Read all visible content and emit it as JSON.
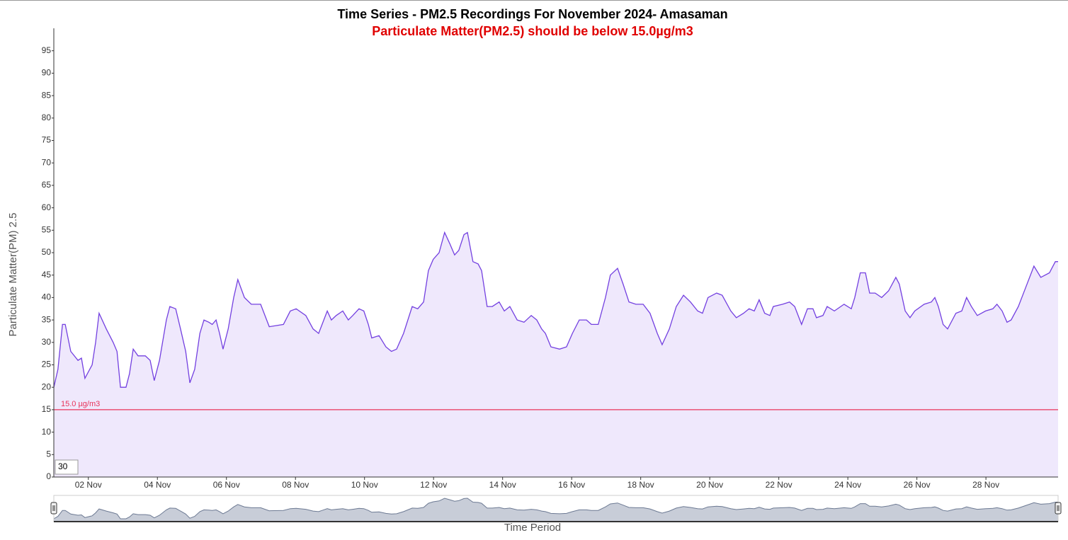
{
  "chart_data": {
    "type": "area",
    "title": "Time Series - PM2.5 Recordings For November 2024- Amasaman",
    "subtitle": "Particulate Matter(PM2.5) should be below 15.0µg/m3",
    "y_label": "Particulate Matter(PM) 2.5",
    "x_label": "Time Period",
    "range_input": "30",
    "color": "#7340e0",
    "fill_color": "#efe8fc",
    "navigator_color": "#6d7a93",
    "navigator_fill": "#c8cdd8",
    "threshold": {
      "value": 15,
      "label": "15.0 µg/m3",
      "color": "#e8335a"
    },
    "xlim": [
      1,
      30.09
    ],
    "ylim": [
      0,
      100
    ],
    "yticks": [
      0,
      5,
      10,
      15,
      20,
      25,
      30,
      35,
      40,
      45,
      50,
      55,
      60,
      65,
      70,
      75,
      80,
      85,
      90,
      95
    ],
    "xticks": [
      {
        "value": 2,
        "label": "02 Nov"
      },
      {
        "value": 4,
        "label": "04 Nov"
      },
      {
        "value": 6,
        "label": "06 Nov"
      },
      {
        "value": 8,
        "label": "08 Nov"
      },
      {
        "value": 10,
        "label": "10 Nov"
      },
      {
        "value": 12,
        "label": "12 Nov"
      },
      {
        "value": 14,
        "label": "14 Nov"
      },
      {
        "value": 16,
        "label": "16 Nov"
      },
      {
        "value": 18,
        "label": "18 Nov"
      },
      {
        "value": 20,
        "label": "20 Nov"
      },
      {
        "value": 22,
        "label": "22 Nov"
      },
      {
        "value": 24,
        "label": "24 Nov"
      },
      {
        "value": 26,
        "label": "26 Nov"
      },
      {
        "value": 28,
        "label": "28 Nov"
      }
    ],
    "x": [
      1.0,
      1.12,
      1.25,
      1.33,
      1.49,
      1.7,
      1.8,
      1.9,
      2.11,
      2.21,
      2.31,
      2.52,
      2.72,
      2.83,
      2.93,
      3.09,
      3.19,
      3.3,
      3.44,
      3.65,
      3.79,
      3.91,
      4.06,
      4.26,
      4.36,
      4.53,
      4.67,
      4.82,
      4.94,
      5.08,
      5.23,
      5.35,
      5.49,
      5.59,
      5.7,
      5.8,
      5.9,
      6.05,
      6.21,
      6.33,
      6.52,
      6.72,
      6.99,
      7.24,
      7.65,
      7.85,
      8.02,
      8.3,
      8.51,
      8.67,
      8.77,
      8.92,
      9.04,
      9.18,
      9.37,
      9.53,
      9.66,
      9.84,
      9.98,
      10.11,
      10.21,
      10.42,
      10.62,
      10.78,
      10.93,
      11.13,
      11.38,
      11.54,
      11.71,
      11.85,
      11.99,
      12.16,
      12.32,
      12.47,
      12.61,
      12.73,
      12.88,
      12.98,
      13.14,
      13.29,
      13.39,
      13.55,
      13.7,
      13.9,
      14.05,
      14.21,
      14.42,
      14.62,
      14.83,
      14.99,
      15.13,
      15.24,
      15.4,
      15.65,
      15.85,
      16.02,
      16.22,
      16.43,
      16.57,
      16.77,
      16.98,
      17.12,
      17.33,
      17.49,
      17.66,
      17.86,
      18.07,
      18.27,
      18.48,
      18.62,
      18.83,
      19.03,
      19.24,
      19.44,
      19.65,
      19.79,
      19.95,
      20.2,
      20.36,
      20.61,
      20.77,
      20.98,
      21.14,
      21.29,
      21.43,
      21.59,
      21.74,
      21.84,
      22.11,
      22.31,
      22.46,
      22.66,
      22.83,
      22.99,
      23.09,
      23.28,
      23.4,
      23.61,
      23.89,
      24.1,
      24.2,
      24.36,
      24.51,
      24.63,
      24.79,
      24.98,
      25.18,
      25.39,
      25.49,
      25.66,
      25.8,
      25.94,
      26.21,
      26.42,
      26.52,
      26.62,
      26.76,
      26.89,
      27.13,
      27.3,
      27.44,
      27.58,
      27.75,
      27.99,
      28.2,
      28.32,
      28.47,
      28.61,
      28.73,
      28.94,
      29.14,
      29.39,
      29.59,
      29.84,
      30.01,
      30.09
    ],
    "values": [
      20,
      24,
      34,
      34,
      28,
      26,
      26.5,
      22,
      25,
      30,
      36.5,
      33,
      30,
      28,
      20,
      20,
      23,
      28.5,
      27,
      27,
      26,
      21.5,
      26,
      35,
      38,
      37.5,
      33,
      28,
      21,
      24,
      32,
      35,
      34.5,
      34,
      35,
      32,
      28.5,
      33,
      40,
      44,
      40,
      38.5,
      38.5,
      33.5,
      34,
      37,
      37.5,
      36,
      33,
      32,
      34,
      37,
      35,
      36,
      37,
      35,
      36,
      37.5,
      37,
      34,
      31,
      31.5,
      29,
      28,
      28.5,
      32,
      38,
      37.5,
      39,
      46,
      48.5,
      50,
      54.5,
      52,
      49.5,
      50.5,
      54,
      54.5,
      48,
      47.5,
      46,
      38,
      38,
      39,
      37,
      38,
      35,
      34.5,
      36,
      35,
      33,
      32,
      29,
      28.5,
      29,
      32,
      35,
      35,
      34,
      34,
      40,
      45,
      46.5,
      43,
      39,
      38.5,
      38.5,
      36.5,
      32,
      29.5,
      33,
      38,
      40.5,
      39,
      37,
      36.5,
      40,
      41,
      40.5,
      37,
      35.5,
      36.5,
      37.5,
      37,
      39.5,
      36.5,
      36,
      38,
      38.5,
      39,
      38,
      34,
      37.5,
      37.5,
      35.5,
      36,
      38,
      37,
      38.5,
      37.5,
      40,
      45.5,
      45.5,
      41,
      41,
      40,
      41.5,
      44.5,
      43,
      37,
      35.5,
      37,
      38.5,
      39,
      40,
      38,
      34,
      33,
      36.5,
      37,
      40,
      38,
      36,
      37,
      37.5,
      38.5,
      37,
      34.5,
      35,
      38,
      42,
      47,
      44.5,
      45.5,
      48,
      48
    ]
  }
}
